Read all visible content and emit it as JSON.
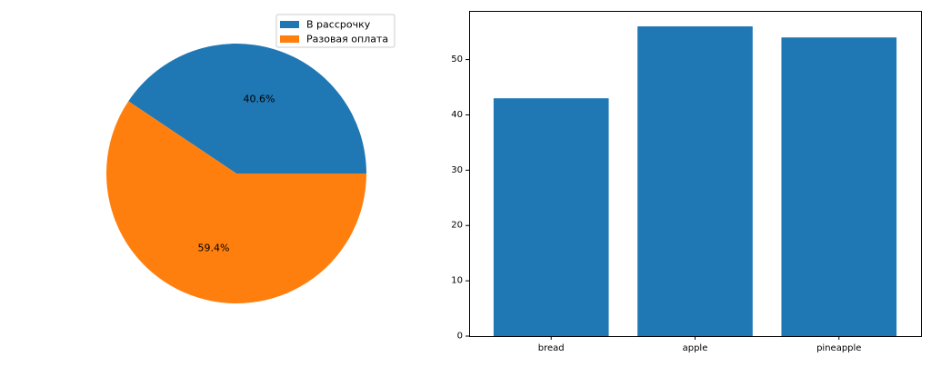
{
  "chart_data": [
    {
      "type": "pie",
      "labels": [
        "В рассрочку",
        "Разовая оплата"
      ],
      "values": [
        40.6,
        59.4
      ],
      "autopct_labels": [
        "40.6%",
        "59.4%"
      ],
      "colors": [
        "#1f77b4",
        "#ff7f0e"
      ],
      "start_angle_deg": 0,
      "direction": "counterclockwise",
      "legend": {
        "placement": "upper-right",
        "entries": [
          "В рассрочку",
          "Разовая оплата"
        ]
      }
    },
    {
      "type": "bar",
      "categories": [
        "bread",
        "apple",
        "pineapple"
      ],
      "values": [
        43,
        56,
        54
      ],
      "color": "#1f77b4",
      "ylim": [
        0,
        58.8
      ],
      "yticks": [
        0,
        10,
        20,
        30,
        40,
        50
      ],
      "ytick_labels": [
        "0",
        "10",
        "20",
        "30",
        "40",
        "50"
      ],
      "grid": false
    }
  ]
}
